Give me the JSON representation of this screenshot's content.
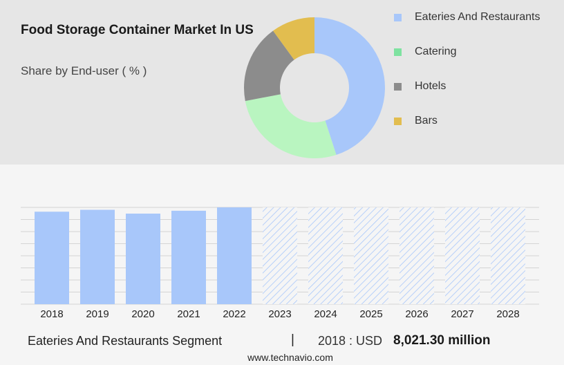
{
  "header": {
    "title": "Food Storage Container Market In US",
    "subtitle": "Share by End-user ( % )"
  },
  "donut_chart": {
    "legend": [
      {
        "label": "Eateries And Restaurants",
        "color": "#a8c7fa"
      },
      {
        "label": "Catering",
        "color": "#7ee2a0"
      },
      {
        "label": "Hotels",
        "color": "#8c8c8c"
      },
      {
        "label": "Bars",
        "color": "#e2bd4f"
      }
    ]
  },
  "chart_data": [
    {
      "type": "pie",
      "title": "Share by End-user ( % )",
      "labels": [
        "Eateries And Restaurants",
        "Catering",
        "Hotels",
        "Bars"
      ],
      "values": [
        45,
        27,
        18,
        10
      ],
      "colors": [
        "#a8c7fa",
        "#b9f5c0",
        "#8c8c8c",
        "#e2bd4f"
      ]
    },
    {
      "type": "bar",
      "categories": [
        "2018",
        "2019",
        "2020",
        "2021",
        "2022",
        "2023",
        "2024",
        "2025",
        "2026",
        "2027",
        "2028"
      ],
      "values": [
        96.5,
        98.5,
        94.5,
        97.5,
        101,
        null,
        null,
        null,
        null,
        null,
        null
      ],
      "forecast_from": "2023",
      "ylim": [
        0,
        101
      ],
      "grid": true,
      "colors": {
        "actual": "#a8c7fa",
        "forecast_hatch": "#a8c7fa"
      }
    }
  ],
  "footer": {
    "segment": "Eateries And Restaurants Segment",
    "divider": "|",
    "year_label": "2018 : USD",
    "value": "8,021.30 million",
    "source": "www.technavio.com"
  }
}
